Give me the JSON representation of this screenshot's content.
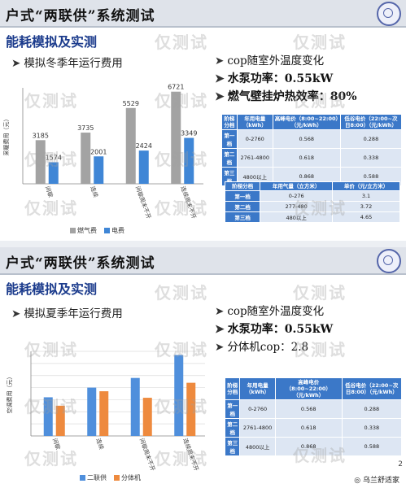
{
  "slide1": {
    "header_title": "户式“两联供”系统测试",
    "subtitle": "能耗模拟及实测",
    "chart_title": "模拟冬季年运行费用",
    "bullets": [
      "cop随室外温度变化",
      "水泵功率：0.55kW",
      "燃气壁挂炉热效率：80%"
    ],
    "table1": {
      "headers": [
        "阶梯分档",
        "年用电量（kWh）",
        "高峰电价（8:00~22:00）（元/kWh）",
        "低谷电价（22:00~次日8:00）（元/kWh）"
      ],
      "rows": [
        [
          "第一档",
          "0-2760",
          "0.568",
          "0.288"
        ],
        [
          "第二档",
          "2761-4800",
          "0.618",
          "0.338"
        ],
        [
          "第三档",
          "4800以上",
          "0.868",
          "0.588"
        ]
      ]
    },
    "table2": {
      "headers": [
        "阶梯分档",
        "年用气量（立方米）",
        "单价（元/立方米）"
      ],
      "rows": [
        [
          "第一档",
          "0-276",
          "3.1"
        ],
        [
          "第二档",
          "277-480",
          "3.72"
        ],
        [
          "第三档",
          "480以上",
          "4.65"
        ]
      ]
    }
  },
  "slide2": {
    "header_title": "户式“两联供”系统测试",
    "subtitle": "能耗模拟及实测",
    "chart_title": "模拟夏季年运行费用",
    "bullets": [
      "cop随室外温度变化",
      "水泵功率：0.55kW",
      "分体机cop：2.8"
    ],
    "table1": {
      "headers": [
        "阶梯分档",
        "年用电量（kWh）",
        "高峰电价（8:00~22:00）（元/kWh）",
        "低谷电价（22:00~次日8:00）（元/kWh）"
      ],
      "rows": [
        [
          "第一档",
          "0-2760",
          "0.568",
          "0.288"
        ],
        [
          "第二档",
          "2761-4800",
          "0.618",
          "0.338"
        ],
        [
          "第三档",
          "4800以上",
          "0.868",
          "0.588"
        ]
      ]
    },
    "page_number": "2",
    "footer_source": "乌兰舒适家"
  },
  "watermark": "仅测试",
  "chart_data": [
    {
      "type": "bar",
      "title": "模拟冬季年运行费用",
      "ylabel": "采暖费用（元）",
      "categories": [
        "间歇",
        "连续",
        "间歇周末不开",
        "连续周末不开"
      ],
      "series": [
        {
          "name": "燃气费",
          "color": "#a3a3a3",
          "values": [
            3185,
            3735,
            5529,
            6721
          ]
        },
        {
          "name": "电费",
          "color": "#3f86d6",
          "values": [
            1574,
            2001,
            2424,
            3349
          ]
        }
      ],
      "data_labels": true,
      "ylim": [
        0,
        7000
      ],
      "grid": false,
      "legend": "bottom"
    },
    {
      "type": "bar",
      "title": "模拟夏季年运行费用",
      "ylabel": "空调费用（元）",
      "categories": [
        "间歇",
        "连续",
        "间歇周末不开",
        "连续周末不开"
      ],
      "series": [
        {
          "name": "二联供",
          "color": "#4f8fdc",
          "values": [
            1600,
            2000,
            2400,
            3350
          ]
        },
        {
          "name": "分体机",
          "color": "#ee8a3e",
          "values": [
            1250,
            1850,
            1580,
            2200
          ]
        }
      ],
      "data_labels": false,
      "ylim": [
        0,
        3500
      ],
      "grid": true,
      "legend": "bottom"
    }
  ]
}
